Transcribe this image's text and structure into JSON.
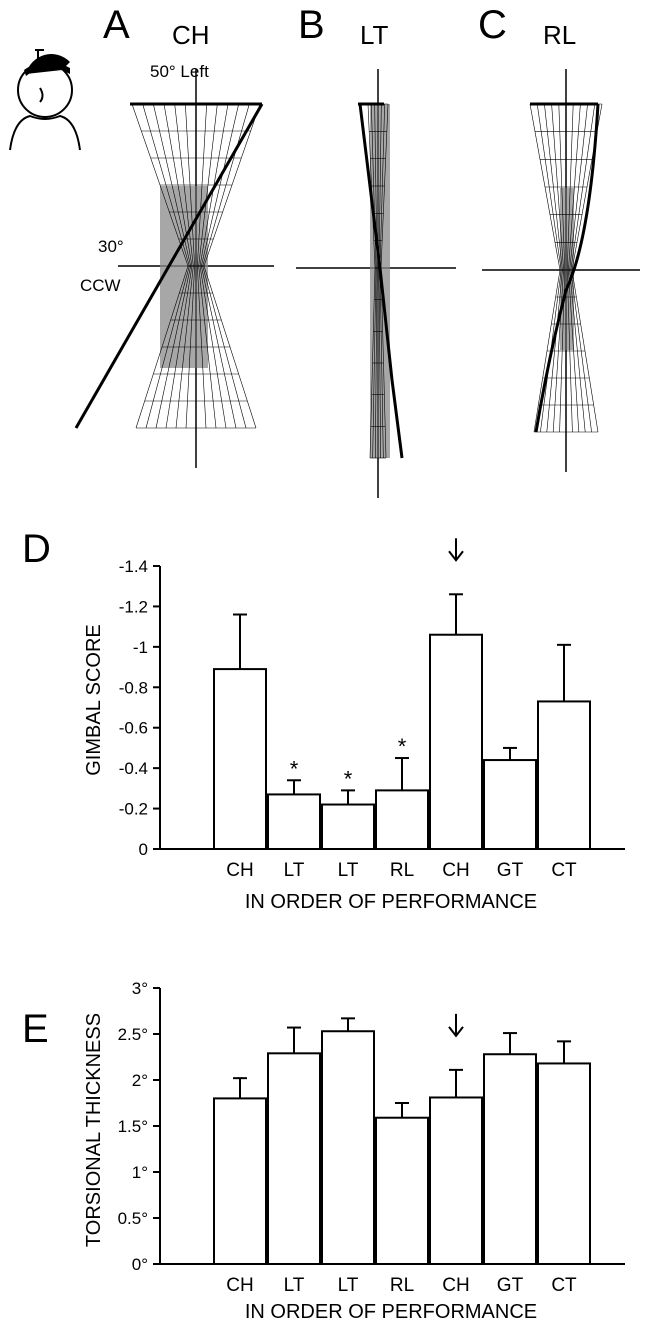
{
  "panels_top": [
    {
      "letter": "A",
      "condition": "CH"
    },
    {
      "letter": "B",
      "condition": "LT"
    },
    {
      "letter": "C",
      "condition": "RL"
    }
  ],
  "top_annotations": {
    "angle_top": "50° Left",
    "angle_left": "30°",
    "direction_left": "CCW"
  },
  "chart_data": [
    {
      "panel": "D",
      "type": "bar",
      "ylabel": "GIMBAL SCORE",
      "xlabel": "IN ORDER OF PERFORMANCE",
      "categories": [
        "CH",
        "LT",
        "LT",
        "RL",
        "CH",
        "GT",
        "CT"
      ],
      "values": [
        -0.89,
        -0.27,
        -0.22,
        -0.29,
        -1.06,
        -0.44,
        -0.73
      ],
      "errors": [
        0.27,
        0.07,
        0.07,
        0.16,
        0.2,
        0.06,
        0.28
      ],
      "significance": [
        "",
        "*",
        "*",
        "*",
        "",
        "",
        ""
      ],
      "arrow_on_index": 4,
      "ylim": [
        0,
        -1.4
      ],
      "yticks": [
        "0",
        "-0.2",
        "-0.4",
        "-0.6",
        "-0.8",
        "-1",
        "-1.2",
        "-1.4"
      ],
      "ytick_values": [
        0,
        -0.2,
        -0.4,
        -0.6,
        -0.8,
        -1,
        -1.2,
        -1.4
      ]
    },
    {
      "panel": "E",
      "type": "bar",
      "ylabel": "TORSIONAL THICKNESS",
      "xlabel": "IN ORDER OF PERFORMANCE",
      "categories": [
        "CH",
        "LT",
        "LT",
        "RL",
        "CH",
        "GT",
        "CT"
      ],
      "values": [
        1.8,
        2.29,
        2.53,
        1.59,
        1.81,
        2.28,
        2.18
      ],
      "errors": [
        0.22,
        0.28,
        0.14,
        0.16,
        0.3,
        0.23,
        0.24
      ],
      "significance": [
        "",
        "",
        "",
        "",
        "",
        "",
        ""
      ],
      "arrow_on_index": 4,
      "ylim": [
        0,
        3
      ],
      "yticks": [
        "0°",
        "0.5°",
        "1°",
        "1.5°",
        "2°",
        "2.5°",
        "3°"
      ],
      "ytick_values": [
        0,
        0.5,
        1,
        1.5,
        2,
        2.5,
        3
      ]
    }
  ]
}
